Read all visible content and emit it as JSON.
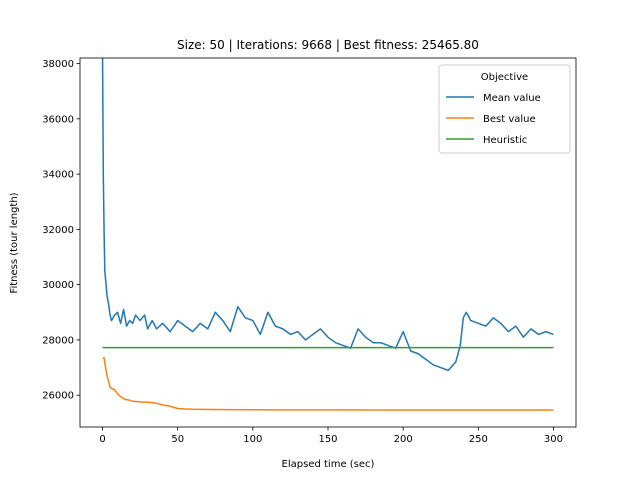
{
  "chart_data": {
    "type": "line",
    "title": "Size: 50 | Iterations: 9668 | Best fitness: 25465.80",
    "xlabel": "Elapsed time (sec)",
    "ylabel": "Fitness (tour length)",
    "xlim": [
      -15,
      315
    ],
    "ylim": [
      24850,
      38200
    ],
    "xticks": [
      0,
      50,
      100,
      150,
      200,
      250,
      300
    ],
    "yticks": [
      26000,
      28000,
      30000,
      32000,
      34000,
      36000,
      38000
    ],
    "grid": false,
    "legend": {
      "title": "Objective",
      "position": "top-right"
    },
    "series": [
      {
        "name": "Mean value",
        "color": "#1f77b4",
        "x": [
          0,
          0.5,
          1,
          1.5,
          2,
          3,
          4,
          5,
          6,
          8,
          10,
          12,
          14,
          16,
          18,
          20,
          22,
          25,
          28,
          30,
          33,
          36,
          40,
          45,
          50,
          55,
          60,
          65,
          70,
          75,
          80,
          85,
          90,
          95,
          100,
          105,
          110,
          115,
          120,
          125,
          130,
          135,
          140,
          145,
          150,
          155,
          160,
          165,
          170,
          175,
          180,
          185,
          190,
          195,
          200,
          205,
          210,
          215,
          220,
          225,
          230,
          235,
          238,
          240,
          242,
          245,
          250,
          255,
          260,
          265,
          270,
          275,
          280,
          285,
          290,
          295,
          300
        ],
        "y": [
          38300,
          34000,
          32000,
          30500,
          30200,
          29600,
          29300,
          28900,
          28700,
          28900,
          29000,
          28600,
          29100,
          28500,
          28700,
          28600,
          28900,
          28700,
          28900,
          28400,
          28700,
          28400,
          28600,
          28300,
          28700,
          28500,
          28300,
          28600,
          28400,
          29000,
          28700,
          28300,
          29200,
          28800,
          28700,
          28200,
          29000,
          28500,
          28400,
          28200,
          28300,
          28000,
          28200,
          28400,
          28100,
          27900,
          27800,
          27700,
          28400,
          28100,
          27900,
          27900,
          27800,
          27700,
          28300,
          27600,
          27500,
          27300,
          27100,
          27000,
          26900,
          27200,
          27800,
          28800,
          29000,
          28700,
          28600,
          28500,
          28800,
          28600,
          28300,
          28500,
          28100,
          28400,
          28200,
          28300,
          28200
        ]
      },
      {
        "name": "Best value",
        "color": "#ff7f0e",
        "x": [
          0,
          1,
          2,
          3,
          4,
          5,
          6,
          8,
          10,
          12,
          15,
          18,
          20,
          25,
          30,
          35,
          40,
          45,
          50,
          55,
          60,
          80,
          100,
          120,
          150,
          200,
          250,
          300
        ],
        "y": [
          27350,
          27350,
          27000,
          26700,
          26500,
          26300,
          26250,
          26200,
          26050,
          25950,
          25850,
          25820,
          25780,
          25760,
          25750,
          25720,
          25650,
          25600,
          25520,
          25500,
          25490,
          25480,
          25475,
          25470,
          25468,
          25466,
          25466,
          25466
        ]
      },
      {
        "name": "Heuristic",
        "color": "#2ca02c",
        "x": [
          0,
          300
        ],
        "y": [
          27720,
          27720
        ]
      }
    ]
  }
}
